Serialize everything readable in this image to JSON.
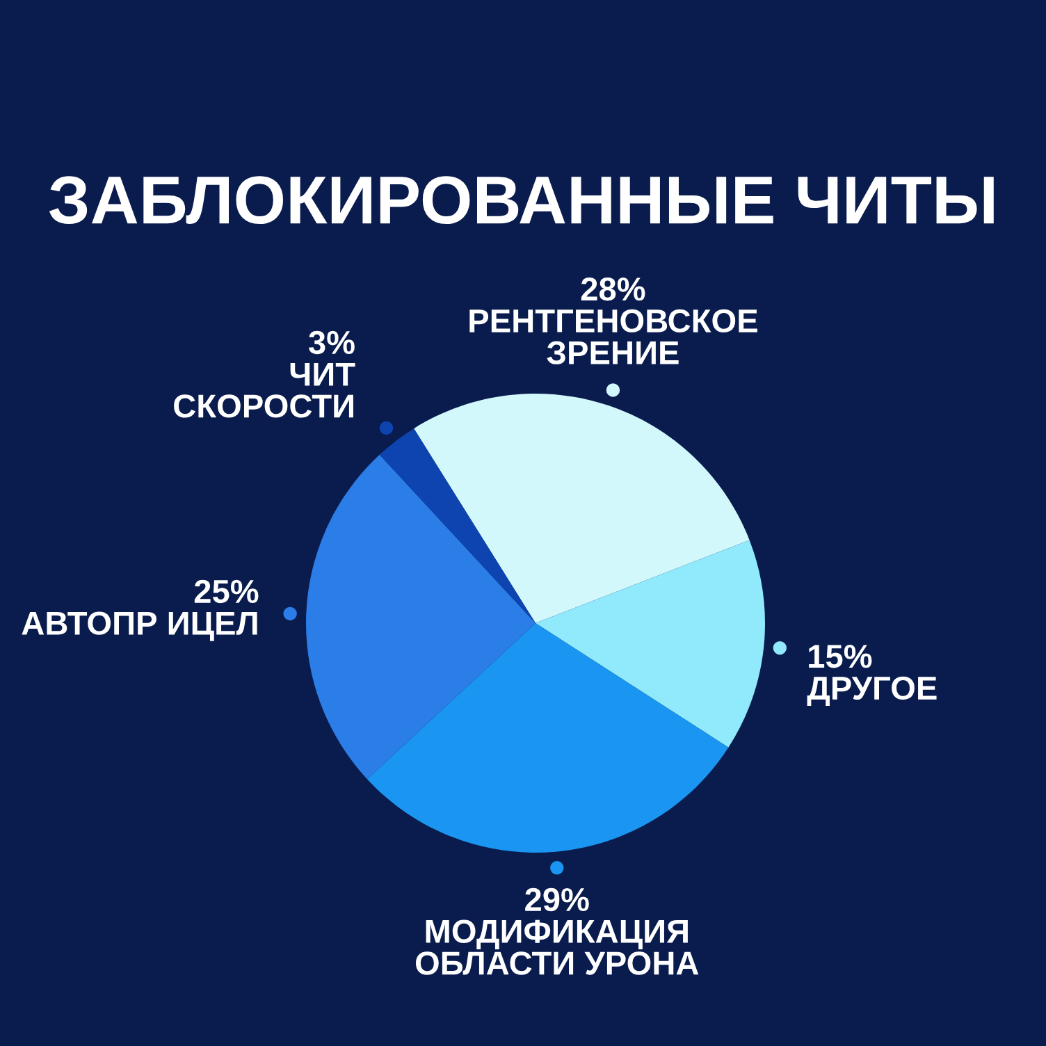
{
  "chart_data": {
    "type": "pie",
    "title": "ЗАБЛОКИРОВАННЫЕ ЧИТЫ",
    "categories": [
      "РЕНТГЕНОВСКОЕ\nЗРЕНИЕ",
      "ДРУГОЕ",
      "МОДИФИКАЦИЯ\nОБЛАСТИ УРОНА",
      "АВТОПР ИЦЕЛ",
      "ЧИТ\nСКОРОСТИ"
    ],
    "values": [
      28,
      15,
      29,
      25,
      3
    ],
    "value_labels": [
      "28%",
      "15%",
      "29%",
      "25%",
      "3%"
    ],
    "colors": [
      "#d2f8fc",
      "#90eafc",
      "#1a96f2",
      "#2b7de8",
      "#0d44b0"
    ]
  }
}
